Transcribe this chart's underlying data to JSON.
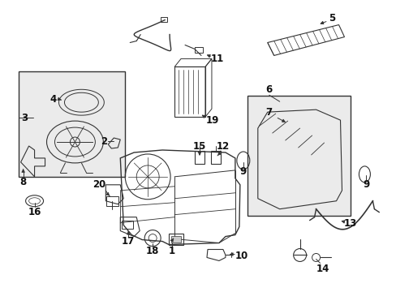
{
  "background_color": "#ffffff",
  "line_color": "#333333",
  "fill_box": "#ebebeb",
  "fig_width": 4.89,
  "fig_height": 3.6,
  "dpi": 100
}
